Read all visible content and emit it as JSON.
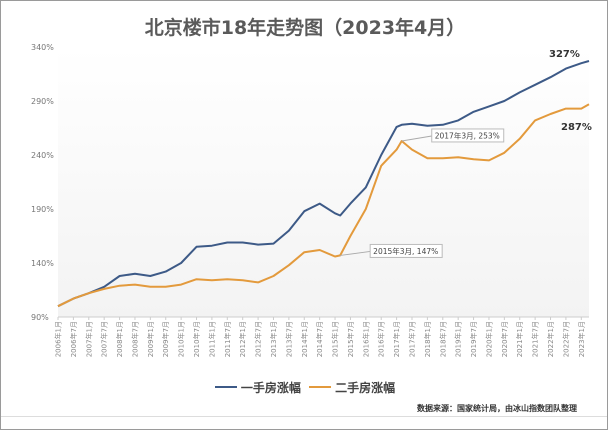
{
  "chart_data": {
    "type": "line",
    "title": "北京楼市18年走势图（2023年4月）",
    "xlabel": "",
    "ylabel": "",
    "ylim": [
      90,
      340
    ],
    "yticks": [
      "90%",
      "140%",
      "190%",
      "240%",
      "290%",
      "340%"
    ],
    "ytick_values": [
      90,
      140,
      190,
      240,
      290,
      340
    ],
    "xticks": [
      "2006年1月",
      "2006年7月",
      "2007年1月",
      "2007年7月",
      "2008年1月",
      "2008年7月",
      "2009年1月",
      "2009年7月",
      "2010年1月",
      "2010年7月",
      "2011年1月",
      "2011年7月",
      "2012年1月",
      "2012年7月",
      "2013年1月",
      "2013年7月",
      "2014年1月",
      "2014年7月",
      "2015年1月",
      "2015年7月",
      "2016年1月",
      "2016年7月",
      "2017年1月",
      "2017年7月",
      "2018年1月",
      "2018年7月",
      "2019年1月",
      "2019年7月",
      "2020年1月",
      "2020年7月",
      "2021年1月",
      "2021年7月",
      "2022年1月",
      "2022年7月",
      "2023年1月"
    ],
    "x": [
      "2006-01",
      "2006-07",
      "2007-01",
      "2007-07",
      "2008-01",
      "2008-07",
      "2009-01",
      "2009-07",
      "2010-01",
      "2010-07",
      "2011-01",
      "2011-07",
      "2012-01",
      "2012-07",
      "2013-01",
      "2013-07",
      "2014-01",
      "2014-07",
      "2015-01",
      "2015-03",
      "2015-07",
      "2016-01",
      "2016-07",
      "2017-01",
      "2017-03",
      "2017-07",
      "2018-01",
      "2018-07",
      "2019-01",
      "2019-07",
      "2020-01",
      "2020-07",
      "2021-01",
      "2021-07",
      "2022-01",
      "2022-07",
      "2023-01",
      "2023-04"
    ],
    "series": [
      {
        "name": "一手房涨幅",
        "color": "#3d5a87",
        "values": [
          100,
          107,
          112,
          118,
          128,
          130,
          128,
          132,
          140,
          155,
          156,
          159,
          159,
          157,
          158,
          170,
          188,
          195,
          186,
          184,
          195,
          210,
          240,
          266,
          268,
          269,
          267,
          268,
          272,
          280,
          285,
          290,
          298,
          305,
          312,
          320,
          325,
          327
        ]
      },
      {
        "name": "二手房涨幅",
        "color": "#e39a3c",
        "values": [
          100,
          107,
          112,
          116,
          119,
          120,
          118,
          118,
          120,
          125,
          124,
          125,
          124,
          122,
          128,
          138,
          150,
          152,
          146,
          147,
          165,
          190,
          230,
          245,
          253,
          245,
          237,
          237,
          238,
          236,
          235,
          242,
          255,
          272,
          278,
          283,
          283,
          287
        ]
      }
    ],
    "annotations": [
      {
        "text": "327%",
        "x": "2023-04",
        "series": "一手房涨幅"
      },
      {
        "text": "287%",
        "x": "2023-04",
        "series": "二手房涨幅"
      },
      {
        "text": "2017年3月, 253%",
        "x": "2017-03",
        "series": "二手房涨幅"
      },
      {
        "text": "2015年3月, 147%",
        "x": "2015-03",
        "series": "二手房涨幅"
      }
    ],
    "legend": "bottom",
    "grid": false
  },
  "legend": {
    "items": [
      "一手房涨幅",
      "二手房涨幅"
    ]
  },
  "source": "数据来源：国家统计局，由冰山指数团队整理"
}
